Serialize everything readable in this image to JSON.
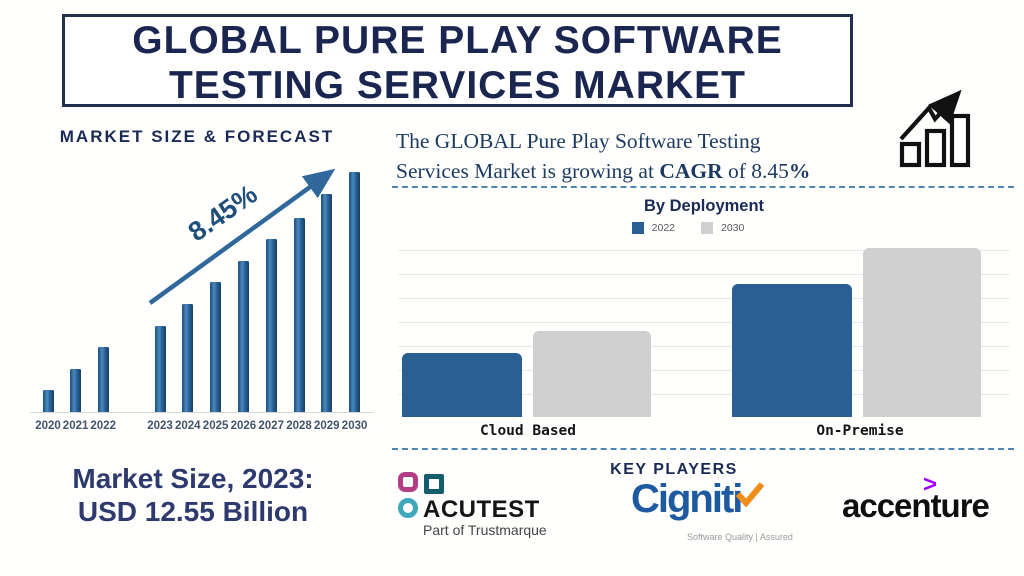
{
  "header": {
    "title_line1": "GLOBAL PURE PLAY SOFTWARE",
    "title_line2": "TESTING SERVICES MARKET"
  },
  "left_panel": {
    "heading": "MARKET SIZE & FORECAST",
    "growth_annotation": "8.45%",
    "market_size": {
      "line1": "Market Size, 2023:",
      "line2": "USD 12.55 Billion"
    }
  },
  "right_panel": {
    "cagr": {
      "line1": "The GLOBAL Pure Play Software Testing",
      "line2_prefix": "Services Market is growing at ",
      "line2_bold1": "CAGR",
      "line2_mid": " of 8.45",
      "line2_bold2": "%"
    },
    "deployment_title": "By Deployment",
    "key_players": {
      "heading": "KEY PLAYERS",
      "acutest": {
        "name": "ACUTEST",
        "tagline": "Part of Trustmarque",
        "colors": {
          "pink": "#b53d85",
          "dark_teal": "#135e6d",
          "teal": "#3fa9bb"
        }
      },
      "cigniti": {
        "name": "Cigniti",
        "tagline": "Software Quality | Assured",
        "brand_blue": "#1e5aa0",
        "check_orange": "#ef8e1b"
      },
      "accenture": {
        "name": "accenture",
        "symbol": ">",
        "accent_purple": "#a100ff"
      }
    }
  },
  "icons": {
    "growth_chart_icon": "bar-chart-with-rising-arrow",
    "trend_arrow_icon": "diagonal-rising-arrow"
  },
  "colors": {
    "navy": "#1b2a55",
    "steel_blue": "#30689c",
    "bar_blue": "#2a5f93",
    "bar_gray": "#d0d0d0",
    "dashed_divider": "#4d86b0"
  },
  "chart_data": [
    {
      "id": "market-size-forecast",
      "type": "bar",
      "title": "MARKET SIZE & FORECAST",
      "categories": [
        "2020",
        "2021",
        "2022",
        "2023",
        "2024",
        "2025",
        "2026",
        "2027",
        "2028",
        "2029",
        "2030"
      ],
      "values": [
        9,
        18,
        27,
        36,
        45,
        54,
        63,
        72,
        81,
        91,
        100
      ],
      "units": "relative bar height, normalized to 2030 = 100 (no value axis shown)",
      "annotation": "8.45%",
      "bar_color": "#2e6da4",
      "grid": false,
      "note": "Market Size, 2023: USD 12.55 Billion; years 2020-2022 historic, 2023-2030 forecast"
    },
    {
      "id": "by-deployment",
      "type": "bar",
      "title": "By Deployment",
      "categories": [
        "Cloud Based",
        "On-Premise"
      ],
      "series": [
        {
          "name": "2022",
          "color": "#2a5f93",
          "values": [
            38,
            79
          ]
        },
        {
          "name": "2030",
          "color": "#d0d0d0",
          "values": [
            51,
            100
          ]
        }
      ],
      "units": "relative bar height, normalized to On-Premise 2030 = 100 (no value axis shown)",
      "grid": true,
      "legend_position": "top"
    }
  ]
}
